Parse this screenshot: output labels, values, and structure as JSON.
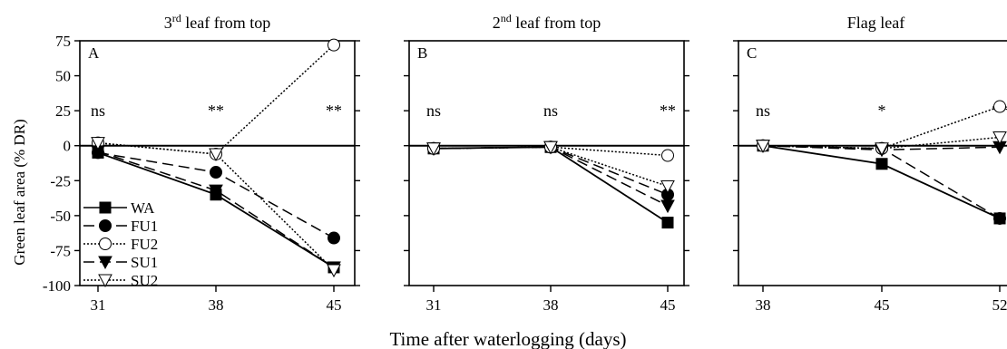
{
  "figure": {
    "xlabel": "Time after waterlogging (days)",
    "ylabel": "Green leaf area (% DR)"
  },
  "chart_data": [
    {
      "type": "line",
      "panel": "A",
      "title": "3rd leaf from top",
      "title_main": "3",
      "title_sup": "rd",
      "title_rest": " leaf from top",
      "x": [
        31,
        38,
        45
      ],
      "ylim": [
        -100,
        75
      ],
      "yticks": [
        -100,
        -75,
        -50,
        -25,
        0,
        25,
        50,
        75
      ],
      "zero_line": true,
      "significance": [
        "ns",
        "**",
        "**"
      ],
      "series": [
        {
          "name": "WA",
          "values": [
            -5,
            -35,
            -87
          ]
        },
        {
          "name": "FU1",
          "values": [
            -5,
            -19,
            -66
          ]
        },
        {
          "name": "FU2",
          "values": [
            2,
            -6,
            72
          ]
        },
        {
          "name": "SU1",
          "values": [
            -4,
            -32,
            -87
          ]
        },
        {
          "name": "SU2",
          "values": [
            2,
            -6,
            -89
          ]
        }
      ],
      "legend": "lower-left"
    },
    {
      "type": "line",
      "panel": "B",
      "title": "2nd leaf from top",
      "title_main": "2",
      "title_sup": "nd",
      "title_rest": " leaf from top",
      "x": [
        31,
        38,
        45
      ],
      "ylim": [
        -100,
        75
      ],
      "zero_line": true,
      "significance": [
        "ns",
        "ns",
        "**"
      ],
      "series": [
        {
          "name": "WA",
          "values": [
            -2,
            -1,
            -55
          ]
        },
        {
          "name": "FU1",
          "values": [
            -2,
            -1,
            -35
          ]
        },
        {
          "name": "FU2",
          "values": [
            -2,
            -1,
            -7
          ]
        },
        {
          "name": "SU1",
          "values": [
            -2,
            -1,
            -43
          ]
        },
        {
          "name": "SU2",
          "values": [
            -2,
            -1,
            -29
          ]
        }
      ]
    },
    {
      "type": "line",
      "panel": "C",
      "title": "Flag leaf",
      "title_main": "Flag leaf",
      "title_sup": "",
      "title_rest": "",
      "x": [
        38,
        45,
        52
      ],
      "ylim": [
        -100,
        75
      ],
      "zero_line": true,
      "significance": [
        "ns",
        "*",
        "**"
      ],
      "series": [
        {
          "name": "WA",
          "values": [
            0,
            -13,
            -52
          ]
        },
        {
          "name": "FU1",
          "values": [
            0,
            -2,
            -52
          ]
        },
        {
          "name": "FU2",
          "values": [
            0,
            -2,
            28
          ]
        },
        {
          "name": "SU1",
          "values": [
            0,
            -3,
            -1
          ]
        },
        {
          "name": "SU2",
          "values": [
            0,
            -2,
            6
          ]
        }
      ]
    }
  ],
  "colors": {
    "axis": "#000000",
    "marker_fill": "#000000",
    "open_fill": "#ffffff"
  }
}
